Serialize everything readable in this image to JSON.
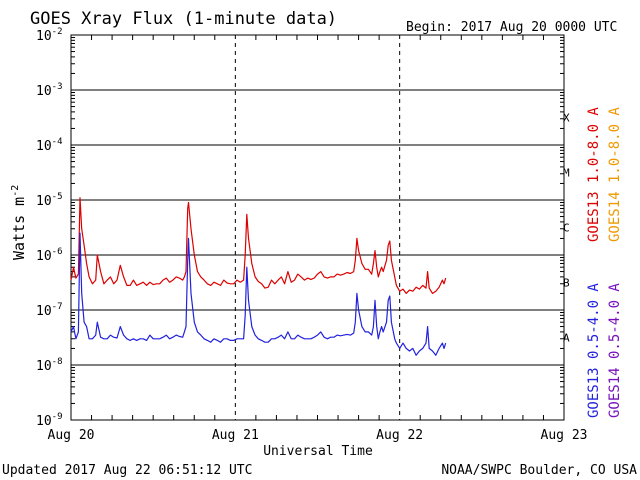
{
  "chart_data": {
    "type": "line",
    "title": "GOES Xray Flux (1-minute data)",
    "begin_label": "Begin:  2017 Aug 20 0000 UTC",
    "xlabel": "Universal Time",
    "ylabel_main": "Watts m",
    "ylabel_exp": "-2",
    "updated": "Updated 2017 Aug 22 06:51:12 UTC",
    "credit": "NOAA/SWPC Boulder, CO USA",
    "x_axis": {
      "unit": "days since 2017 Aug 20 0000 UTC",
      "range": [
        0,
        3
      ],
      "ticks": [
        {
          "value": 0,
          "label": "Aug 20"
        },
        {
          "value": 1,
          "label": "Aug 21"
        },
        {
          "value": 2,
          "label": "Aug 22"
        },
        {
          "value": 3,
          "label": "Aug 23"
        }
      ]
    },
    "y_axis": {
      "scale": "log",
      "range": [
        -9,
        -2
      ],
      "ticks": [
        {
          "value": -9,
          "base": "10",
          "exp": "-9"
        },
        {
          "value": -8,
          "base": "10",
          "exp": "-8"
        },
        {
          "value": -7,
          "base": "10",
          "exp": "-7"
        },
        {
          "value": -6,
          "base": "10",
          "exp": "-6"
        },
        {
          "value": -5,
          "base": "10",
          "exp": "-5"
        },
        {
          "value": -4,
          "base": "10",
          "exp": "-4"
        },
        {
          "value": -3,
          "base": "10",
          "exp": "-3"
        },
        {
          "value": -2,
          "base": "10",
          "exp": "-2"
        }
      ]
    },
    "flare_classes": [
      {
        "label": "A",
        "from": -8,
        "to": -7
      },
      {
        "label": "B",
        "from": -7,
        "to": -6
      },
      {
        "label": "C",
        "from": -6,
        "to": -5
      },
      {
        "label": "M",
        "from": -5,
        "to": -4
      },
      {
        "label": "X",
        "from": -4,
        "to": -3
      }
    ],
    "legend": [
      {
        "name": "GOES13 1.0-8.0 A",
        "color": "#dd0000"
      },
      {
        "name": "GOES14 1.0-8.0 A",
        "color": "#ee9900"
      },
      {
        "name": "GOES13 0.5-4.0 A",
        "color": "#2222dd"
      },
      {
        "name": "GOES14 0.5-4.0 A",
        "color": "#7711bb"
      }
    ],
    "series": [
      {
        "name": "GOES13 1.0-8.0 A",
        "color": "#dd0000",
        "points": [
          [
            0.0,
            3.5e-07
          ],
          [
            0.015,
            6e-07
          ],
          [
            0.03,
            3.8e-07
          ],
          [
            0.045,
            4.5e-07
          ],
          [
            0.055,
            1.1e-05
          ],
          [
            0.065,
            3e-06
          ],
          [
            0.08,
            1.5e-06
          ],
          [
            0.095,
            7e-07
          ],
          [
            0.11,
            4e-07
          ],
          [
            0.13,
            3e-07
          ],
          [
            0.15,
            3.5e-07
          ],
          [
            0.16,
            1e-06
          ],
          [
            0.18,
            5e-07
          ],
          [
            0.2,
            3e-07
          ],
          [
            0.22,
            3.5e-07
          ],
          [
            0.24,
            4e-07
          ],
          [
            0.26,
            3e-07
          ],
          [
            0.28,
            3.5e-07
          ],
          [
            0.3,
            6.5e-07
          ],
          [
            0.32,
            4e-07
          ],
          [
            0.34,
            2.8e-07
          ],
          [
            0.36,
            2.8e-07
          ],
          [
            0.38,
            3.5e-07
          ],
          [
            0.4,
            2.8e-07
          ],
          [
            0.42,
            3e-07
          ],
          [
            0.44,
            3.2e-07
          ],
          [
            0.46,
            2.8e-07
          ],
          [
            0.48,
            3.2e-07
          ],
          [
            0.5,
            2.9e-07
          ],
          [
            0.52,
            3e-07
          ],
          [
            0.54,
            3e-07
          ],
          [
            0.56,
            3.5e-07
          ],
          [
            0.58,
            3.8e-07
          ],
          [
            0.6,
            3.2e-07
          ],
          [
            0.62,
            3.5e-07
          ],
          [
            0.64,
            4e-07
          ],
          [
            0.66,
            3.8e-07
          ],
          [
            0.68,
            3.5e-07
          ],
          [
            0.69,
            4e-07
          ],
          [
            0.7,
            5e-07
          ],
          [
            0.71,
            7e-06
          ],
          [
            0.715,
            9e-06
          ],
          [
            0.73,
            3e-06
          ],
          [
            0.75,
            1e-06
          ],
          [
            0.77,
            5e-07
          ],
          [
            0.79,
            4e-07
          ],
          [
            0.81,
            3.5e-07
          ],
          [
            0.83,
            3e-07
          ],
          [
            0.85,
            2.8e-07
          ],
          [
            0.87,
            3.2e-07
          ],
          [
            0.89,
            3e-07
          ],
          [
            0.91,
            2.8e-07
          ],
          [
            0.93,
            3.5e-07
          ],
          [
            0.95,
            3.1e-07
          ],
          [
            0.97,
            3e-07
          ],
          [
            0.99,
            3e-07
          ],
          [
            1.01,
            3.5e-07
          ],
          [
            1.03,
            3.2e-07
          ],
          [
            1.05,
            3.5e-07
          ],
          [
            1.06,
            1e-06
          ],
          [
            1.07,
            5.5e-06
          ],
          [
            1.08,
            2e-06
          ],
          [
            1.1,
            7e-07
          ],
          [
            1.12,
            4e-07
          ],
          [
            1.14,
            3.3e-07
          ],
          [
            1.16,
            3e-07
          ],
          [
            1.18,
            2.5e-07
          ],
          [
            1.2,
            2.6e-07
          ],
          [
            1.22,
            3.5e-07
          ],
          [
            1.24,
            3e-07
          ],
          [
            1.26,
            3.5e-07
          ],
          [
            1.28,
            4e-07
          ],
          [
            1.3,
            3e-07
          ],
          [
            1.32,
            5e-07
          ],
          [
            1.34,
            3.2e-07
          ],
          [
            1.36,
            3.5e-07
          ],
          [
            1.38,
            4.5e-07
          ],
          [
            1.4,
            4e-07
          ],
          [
            1.42,
            3.5e-07
          ],
          [
            1.44,
            3.8e-07
          ],
          [
            1.46,
            3.6e-07
          ],
          [
            1.48,
            3.8e-07
          ],
          [
            1.5,
            4.5e-07
          ],
          [
            1.52,
            5e-07
          ],
          [
            1.54,
            4e-07
          ],
          [
            1.56,
            3.8e-07
          ],
          [
            1.58,
            4e-07
          ],
          [
            1.6,
            4e-07
          ],
          [
            1.62,
            4.5e-07
          ],
          [
            1.64,
            4.3e-07
          ],
          [
            1.66,
            4.5e-07
          ],
          [
            1.68,
            4.8e-07
          ],
          [
            1.7,
            4.6e-07
          ],
          [
            1.72,
            5e-07
          ],
          [
            1.73,
            8e-07
          ],
          [
            1.74,
            2e-06
          ],
          [
            1.75,
            1.2e-06
          ],
          [
            1.77,
            7e-07
          ],
          [
            1.79,
            5.5e-07
          ],
          [
            1.81,
            5.5e-07
          ],
          [
            1.83,
            4.5e-07
          ],
          [
            1.84,
            7e-07
          ],
          [
            1.85,
            1.2e-06
          ],
          [
            1.86,
            6e-07
          ],
          [
            1.87,
            4e-07
          ],
          [
            1.88,
            5e-07
          ],
          [
            1.89,
            6e-07
          ],
          [
            1.9,
            5e-07
          ],
          [
            1.92,
            8e-07
          ],
          [
            1.93,
            1.5e-06
          ],
          [
            1.94,
            1.8e-06
          ],
          [
            1.95,
            8e-07
          ],
          [
            1.97,
            4e-07
          ],
          [
            1.98,
            2.8e-07
          ],
          [
            2.0,
            2.2e-07
          ],
          [
            2.02,
            2.4e-07
          ],
          [
            2.04,
            2e-07
          ],
          [
            2.06,
            2.3e-07
          ],
          [
            2.08,
            2.2e-07
          ],
          [
            2.1,
            2.6e-07
          ],
          [
            2.12,
            2.4e-07
          ],
          [
            2.14,
            2.8e-07
          ],
          [
            2.16,
            2.5e-07
          ],
          [
            2.17,
            5e-07
          ],
          [
            2.18,
            2.5e-07
          ],
          [
            2.2,
            2e-07
          ],
          [
            2.22,
            2.2e-07
          ],
          [
            2.24,
            2.6e-07
          ],
          [
            2.26,
            3.5e-07
          ],
          [
            2.27,
            3e-07
          ],
          [
            2.28,
            3.8e-07
          ]
        ]
      },
      {
        "name": "GOES13 0.5-4.0 A",
        "color": "#2222dd",
        "points": [
          [
            0.0,
            4e-08
          ],
          [
            0.015,
            5e-08
          ],
          [
            0.03,
            3e-08
          ],
          [
            0.045,
            4e-08
          ],
          [
            0.055,
            2.5e-06
          ],
          [
            0.065,
            2e-07
          ],
          [
            0.08,
            6e-08
          ],
          [
            0.095,
            5e-08
          ],
          [
            0.11,
            3e-08
          ],
          [
            0.13,
            3e-08
          ],
          [
            0.15,
            3.5e-08
          ],
          [
            0.16,
            6e-08
          ],
          [
            0.18,
            3.2e-08
          ],
          [
            0.2,
            3e-08
          ],
          [
            0.22,
            3e-08
          ],
          [
            0.24,
            3.5e-08
          ],
          [
            0.26,
            3.2e-08
          ],
          [
            0.28,
            3.1e-08
          ],
          [
            0.3,
            5e-08
          ],
          [
            0.32,
            3.5e-08
          ],
          [
            0.34,
            3e-08
          ],
          [
            0.36,
            2.8e-08
          ],
          [
            0.38,
            3e-08
          ],
          [
            0.4,
            2.8e-08
          ],
          [
            0.42,
            3e-08
          ],
          [
            0.44,
            3e-08
          ],
          [
            0.46,
            2.8e-08
          ],
          [
            0.48,
            3.5e-08
          ],
          [
            0.5,
            3e-08
          ],
          [
            0.52,
            3e-08
          ],
          [
            0.54,
            3e-08
          ],
          [
            0.56,
            3.2e-08
          ],
          [
            0.58,
            3.5e-08
          ],
          [
            0.6,
            3e-08
          ],
          [
            0.62,
            3.2e-08
          ],
          [
            0.64,
            3.5e-08
          ],
          [
            0.66,
            3.3e-08
          ],
          [
            0.68,
            3.2e-08
          ],
          [
            0.69,
            4e-08
          ],
          [
            0.7,
            5e-08
          ],
          [
            0.71,
            8e-07
          ],
          [
            0.715,
            2e-06
          ],
          [
            0.73,
            2e-07
          ],
          [
            0.75,
            6e-08
          ],
          [
            0.77,
            4e-08
          ],
          [
            0.79,
            3.5e-08
          ],
          [
            0.81,
            3e-08
          ],
          [
            0.83,
            2.8e-08
          ],
          [
            0.85,
            2.6e-08
          ],
          [
            0.87,
            3e-08
          ],
          [
            0.89,
            2.8e-08
          ],
          [
            0.91,
            2.6e-08
          ],
          [
            0.93,
            3e-08
          ],
          [
            0.95,
            3e-08
          ],
          [
            0.97,
            2.8e-08
          ],
          [
            0.99,
            2.8e-08
          ],
          [
            1.01,
            3e-08
          ],
          [
            1.03,
            3e-08
          ],
          [
            1.05,
            3e-08
          ],
          [
            1.06,
            8e-08
          ],
          [
            1.07,
            6e-07
          ],
          [
            1.08,
            1.5e-07
          ],
          [
            1.1,
            5e-08
          ],
          [
            1.12,
            3.5e-08
          ],
          [
            1.14,
            3e-08
          ],
          [
            1.16,
            2.8e-08
          ],
          [
            1.18,
            2.6e-08
          ],
          [
            1.2,
            2.6e-08
          ],
          [
            1.22,
            3e-08
          ],
          [
            1.24,
            3e-08
          ],
          [
            1.26,
            3.2e-08
          ],
          [
            1.28,
            3.5e-08
          ],
          [
            1.3,
            3e-08
          ],
          [
            1.32,
            4e-08
          ],
          [
            1.34,
            3e-08
          ],
          [
            1.36,
            3e-08
          ],
          [
            1.38,
            3.5e-08
          ],
          [
            1.4,
            3.2e-08
          ],
          [
            1.42,
            3e-08
          ],
          [
            1.44,
            3e-08
          ],
          [
            1.46,
            3e-08
          ],
          [
            1.48,
            3.2e-08
          ],
          [
            1.5,
            3.5e-08
          ],
          [
            1.52,
            4e-08
          ],
          [
            1.54,
            3.2e-08
          ],
          [
            1.56,
            3e-08
          ],
          [
            1.58,
            3.2e-08
          ],
          [
            1.6,
            3.2e-08
          ],
          [
            1.62,
            3.5e-08
          ],
          [
            1.64,
            3.4e-08
          ],
          [
            1.66,
            3.5e-08
          ],
          [
            1.68,
            3.6e-08
          ],
          [
            1.7,
            3.5e-08
          ],
          [
            1.72,
            3.8e-08
          ],
          [
            1.73,
            6e-08
          ],
          [
            1.74,
            2e-07
          ],
          [
            1.75,
            1e-07
          ],
          [
            1.77,
            5e-08
          ],
          [
            1.79,
            4e-08
          ],
          [
            1.81,
            4e-08
          ],
          [
            1.83,
            3.5e-08
          ],
          [
            1.84,
            5e-08
          ],
          [
            1.85,
            1.5e-07
          ],
          [
            1.86,
            5e-08
          ],
          [
            1.87,
            3e-08
          ],
          [
            1.88,
            4e-08
          ],
          [
            1.89,
            5e-08
          ],
          [
            1.9,
            4e-08
          ],
          [
            1.92,
            6e-08
          ],
          [
            1.93,
            1.5e-07
          ],
          [
            1.94,
            1.8e-07
          ],
          [
            1.95,
            6e-08
          ],
          [
            1.97,
            3e-08
          ],
          [
            1.98,
            2.5e-08
          ],
          [
            2.0,
            2e-08
          ],
          [
            2.02,
            2.5e-08
          ],
          [
            2.04,
            2e-08
          ],
          [
            2.06,
            1.8e-08
          ],
          [
            2.08,
            2e-08
          ],
          [
            2.1,
            1.5e-08
          ],
          [
            2.12,
            1.8e-08
          ],
          [
            2.14,
            2e-08
          ],
          [
            2.16,
            2.5e-08
          ],
          [
            2.17,
            5e-08
          ],
          [
            2.18,
            2e-08
          ],
          [
            2.2,
            1.8e-08
          ],
          [
            2.22,
            1.5e-08
          ],
          [
            2.24,
            2e-08
          ],
          [
            2.26,
            2.5e-08
          ],
          [
            2.27,
            2e-08
          ],
          [
            2.28,
            2.5e-08
          ]
        ]
      }
    ]
  }
}
